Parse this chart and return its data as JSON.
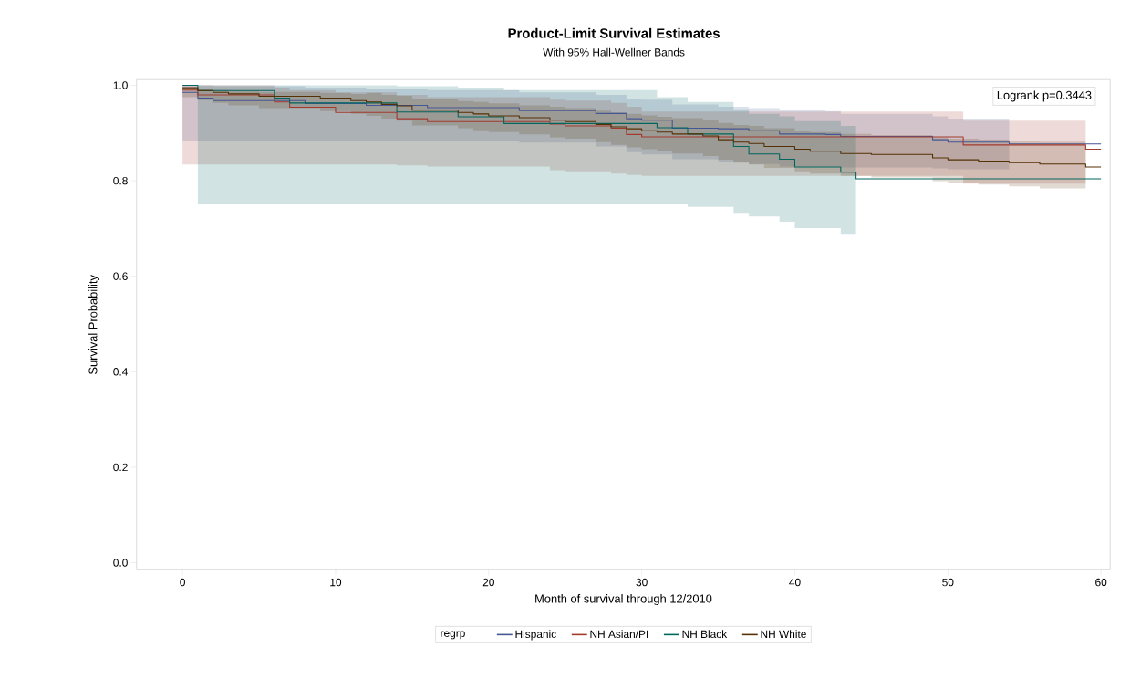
{
  "chart_data": {
    "type": "step",
    "title": "Product-Limit Survival Estimates",
    "subtitle": "With 95% Hall-Wellner Bands",
    "xlabel": "Month of survival through 12/2010",
    "ylabel": "Survival Probability",
    "legend_title": "regrp",
    "annotations": [
      "Logrank p=0.3443"
    ],
    "xlim": [
      -3,
      60.6
    ],
    "ylim": [
      -0.015,
      1.012
    ],
    "xticks": [
      0,
      10,
      20,
      30,
      40,
      50,
      60
    ],
    "yticks": [
      {
        "value": 0,
        "label": "0.0"
      },
      {
        "value": 0.2,
        "label": "0.2"
      },
      {
        "value": 0.4,
        "label": "0.4"
      },
      {
        "value": 0.6,
        "label": "0.6"
      },
      {
        "value": 0.8,
        "label": "0.8"
      },
      {
        "value": 1,
        "label": "1.0"
      }
    ],
    "legend": "bottom",
    "marker": "none",
    "series": [
      {
        "name": "Hispanic",
        "color": "#445694",
        "x": [
          0,
          1,
          2,
          8,
          12,
          16,
          22,
          27,
          29,
          30,
          32,
          35,
          37,
          39,
          42,
          43,
          49,
          50,
          54,
          60
        ],
        "values": [
          0.985,
          0.973,
          0.968,
          0.962,
          0.958,
          0.953,
          0.947,
          0.941,
          0.93,
          0.927,
          0.91,
          0.909,
          0.905,
          0.898,
          0.897,
          0.893,
          0.886,
          0.881,
          0.877,
          0.877
        ],
        "lower": [
          0.884,
          0.884,
          0.884,
          0.884,
          0.884,
          0.884,
          0.88,
          0.872,
          0.86,
          0.855,
          0.845,
          0.84,
          0.835,
          0.83,
          0.83,
          0.828,
          0.826,
          0.824,
          0.824,
          null
        ],
        "upper": [
          1.0,
          1.0,
          0.998,
          0.995,
          0.993,
          0.99,
          0.985,
          0.98,
          0.972,
          0.97,
          0.96,
          0.955,
          0.952,
          0.948,
          0.946,
          0.94,
          0.935,
          0.93,
          0.93,
          null
        ]
      },
      {
        "name": "NH Asian/PI",
        "color": "#a23a2e",
        "x": [
          0,
          1,
          6,
          7,
          10,
          14,
          16,
          24,
          25,
          28,
          29,
          30,
          51,
          59,
          60
        ],
        "values": [
          0.99,
          0.98,
          0.965,
          0.954,
          0.943,
          0.93,
          0.924,
          0.919,
          0.915,
          0.91,
          0.897,
          0.892,
          0.875,
          0.866,
          0.866
        ],
        "lower": [
          0.834,
          0.834,
          0.834,
          0.834,
          0.834,
          0.832,
          0.83,
          0.822,
          0.82,
          0.815,
          0.812,
          0.81,
          0.794,
          0.794,
          null
        ],
        "upper": [
          1.0,
          1.0,
          0.995,
          0.99,
          0.985,
          0.98,
          0.975,
          0.97,
          0.968,
          0.963,
          0.955,
          0.945,
          0.926,
          0.926,
          null
        ]
      },
      {
        "name": "NH Black",
        "color": "#01665e",
        "x": [
          0,
          1,
          6,
          7,
          14,
          18,
          21,
          31,
          33,
          36,
          37,
          39,
          40,
          43,
          44,
          60
        ],
        "values": [
          1.0,
          0.989,
          0.973,
          0.963,
          0.944,
          0.934,
          0.92,
          0.911,
          0.898,
          0.872,
          0.856,
          0.845,
          0.829,
          0.818,
          0.804,
          0.804
        ],
        "lower": [
          null,
          0.752,
          0.752,
          0.752,
          0.752,
          0.752,
          0.752,
          0.752,
          0.745,
          0.733,
          0.725,
          0.714,
          0.701,
          0.689,
          0.689,
          null
        ],
        "upper": [
          null,
          1.0,
          1.0,
          1.0,
          0.998,
          0.995,
          0.99,
          0.975,
          0.965,
          0.95,
          0.94,
          0.935,
          0.925,
          0.915,
          0.915,
          null
        ]
      },
      {
        "name": "NH White",
        "color": "#543005",
        "x": [
          0,
          1,
          2,
          3,
          5,
          9,
          11,
          12,
          13,
          14,
          15,
          18,
          19,
          20,
          22,
          24,
          25,
          27,
          28,
          29,
          30,
          31,
          32,
          34,
          35,
          36,
          37,
          38,
          40,
          41,
          43,
          45,
          49,
          50,
          52,
          54,
          56,
          59,
          60
        ],
        "values": [
          0.995,
          0.989,
          0.985,
          0.982,
          0.977,
          0.973,
          0.968,
          0.965,
          0.96,
          0.957,
          0.948,
          0.943,
          0.94,
          0.936,
          0.932,
          0.927,
          0.924,
          0.918,
          0.913,
          0.909,
          0.905,
          0.902,
          0.898,
          0.894,
          0.886,
          0.881,
          0.878,
          0.872,
          0.866,
          0.862,
          0.857,
          0.855,
          0.848,
          0.844,
          0.841,
          0.838,
          0.835,
          0.829,
          0.829
        ],
        "lower": [
          0.975,
          0.969,
          0.963,
          0.958,
          0.952,
          0.946,
          0.94,
          0.936,
          0.93,
          0.926,
          0.916,
          0.91,
          0.906,
          0.902,
          0.897,
          0.891,
          0.888,
          0.881,
          0.875,
          0.87,
          0.866,
          0.862,
          0.857,
          0.852,
          0.844,
          0.838,
          0.834,
          0.827,
          0.82,
          0.815,
          0.81,
          0.807,
          0.799,
          0.795,
          0.792,
          0.788,
          0.784,
          0.784,
          null
        ],
        "upper": [
          0.995,
          0.993,
          0.99,
          0.988,
          0.986,
          0.984,
          0.982,
          0.984,
          0.98,
          0.978,
          0.971,
          0.967,
          0.965,
          0.962,
          0.958,
          0.955,
          0.952,
          0.947,
          0.943,
          0.94,
          0.937,
          0.934,
          0.931,
          0.928,
          0.921,
          0.917,
          0.915,
          0.91,
          0.905,
          0.902,
          0.898,
          0.896,
          0.891,
          0.888,
          0.886,
          0.884,
          0.882,
          0.882,
          null
        ]
      }
    ]
  }
}
